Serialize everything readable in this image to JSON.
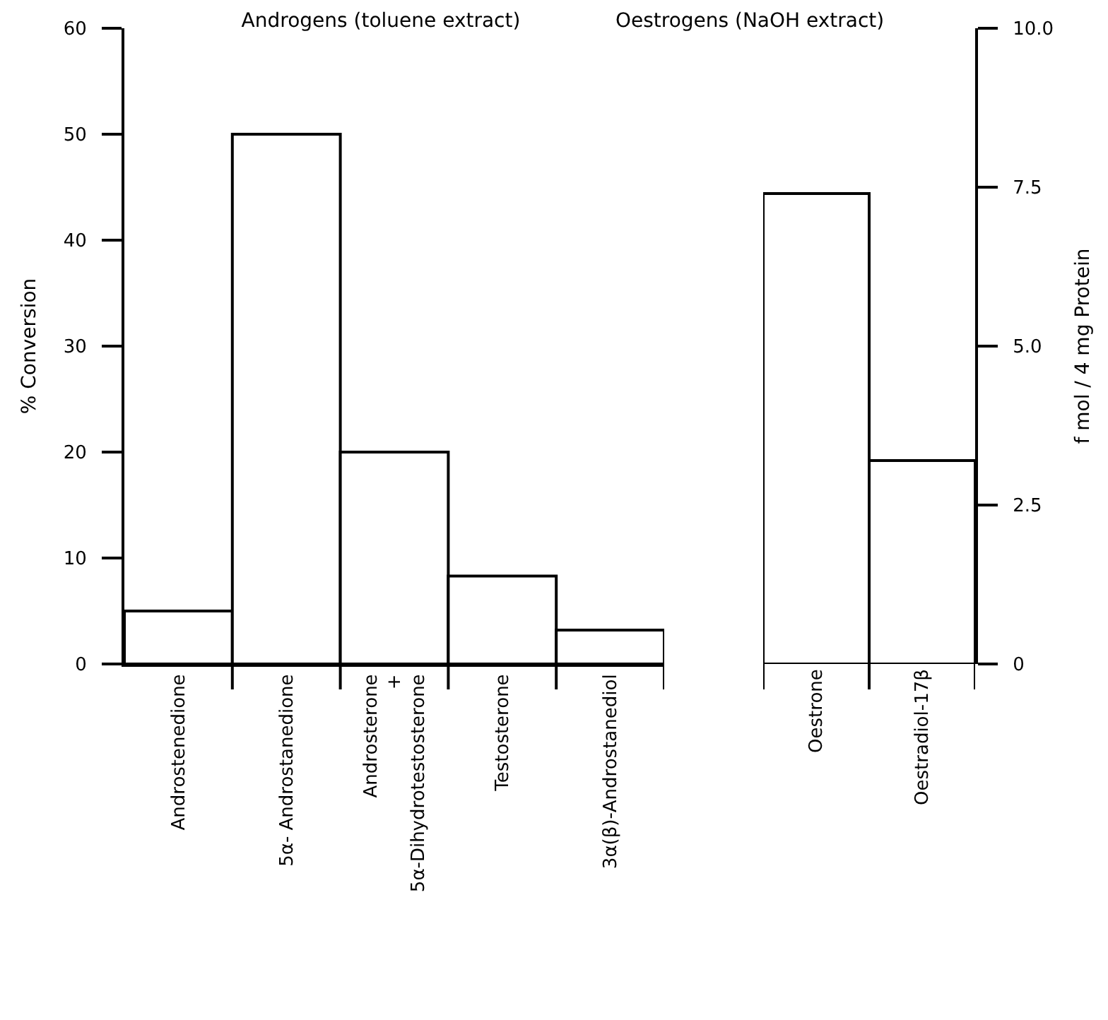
{
  "chart_data": [
    {
      "type": "bar",
      "title": "Androgens (toluene extract)",
      "ylabel": "% Conversion",
      "categories": [
        "Androstenedione",
        "5α- Androstanedione",
        "Androsterone\n+\n5α-Dihydrotestosterone",
        "Testosterone",
        "3α(β)-Androstanediol"
      ],
      "values": [
        5,
        50,
        20,
        8.3,
        3.2
      ],
      "color": "#ffffff",
      "ylim": [
        0,
        60
      ],
      "yticks": [
        0,
        10,
        20,
        30,
        40,
        50,
        60
      ]
    },
    {
      "type": "bar",
      "title": "Oestrogens (NaOH extract)",
      "ylabel": "f mol / 4 mg Protein",
      "categories": [
        "Oestrone",
        "Oestradiol-17β"
      ],
      "values": [
        7.4,
        3.2
      ],
      "color": "#ffffff",
      "ylim": [
        0,
        10
      ],
      "yticks": [
        0,
        2.5,
        {
          "value": 5,
          "label": "5.0"
        },
        7.5,
        {
          "value": 10,
          "label": "10.0"
        }
      ]
    }
  ]
}
